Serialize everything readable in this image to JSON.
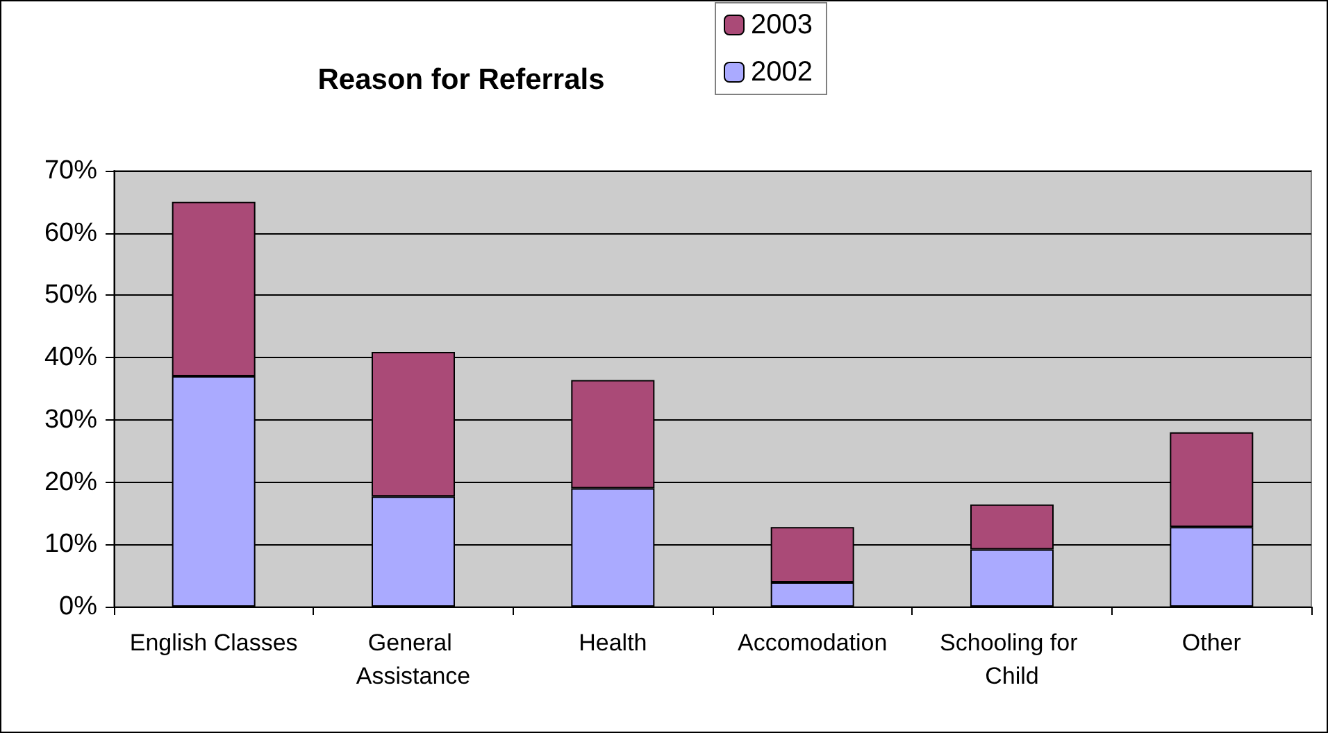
{
  "chart_data": {
    "type": "bar",
    "title": "Reason for Referrals",
    "stacked": true,
    "categories": [
      "English Classes",
      "General Assistance",
      "Health",
      "Accomodation",
      "Schooling for Child",
      "Other"
    ],
    "series": [
      {
        "name": "2002",
        "color": "#aaaaff",
        "values": [
          37,
          17.7,
          19,
          3.9,
          9.2,
          12.8
        ]
      },
      {
        "name": "2003",
        "color": "#aa4a77",
        "values": [
          28,
          23.2,
          17.4,
          8.9,
          7.2,
          15.2
        ]
      }
    ],
    "ylim": [
      0,
      70
    ],
    "yticks": [
      {
        "value": 0,
        "label": "0%"
      },
      {
        "value": 10,
        "label": "10%"
      },
      {
        "value": 20,
        "label": "20%"
      },
      {
        "value": 30,
        "label": "30%"
      },
      {
        "value": 40,
        "label": "40%"
      },
      {
        "value": 50,
        "label": "50%"
      },
      {
        "value": 60,
        "label": "60%"
      },
      {
        "value": 70,
        "label": "70%"
      }
    ],
    "grid": "y",
    "legend": "top"
  }
}
